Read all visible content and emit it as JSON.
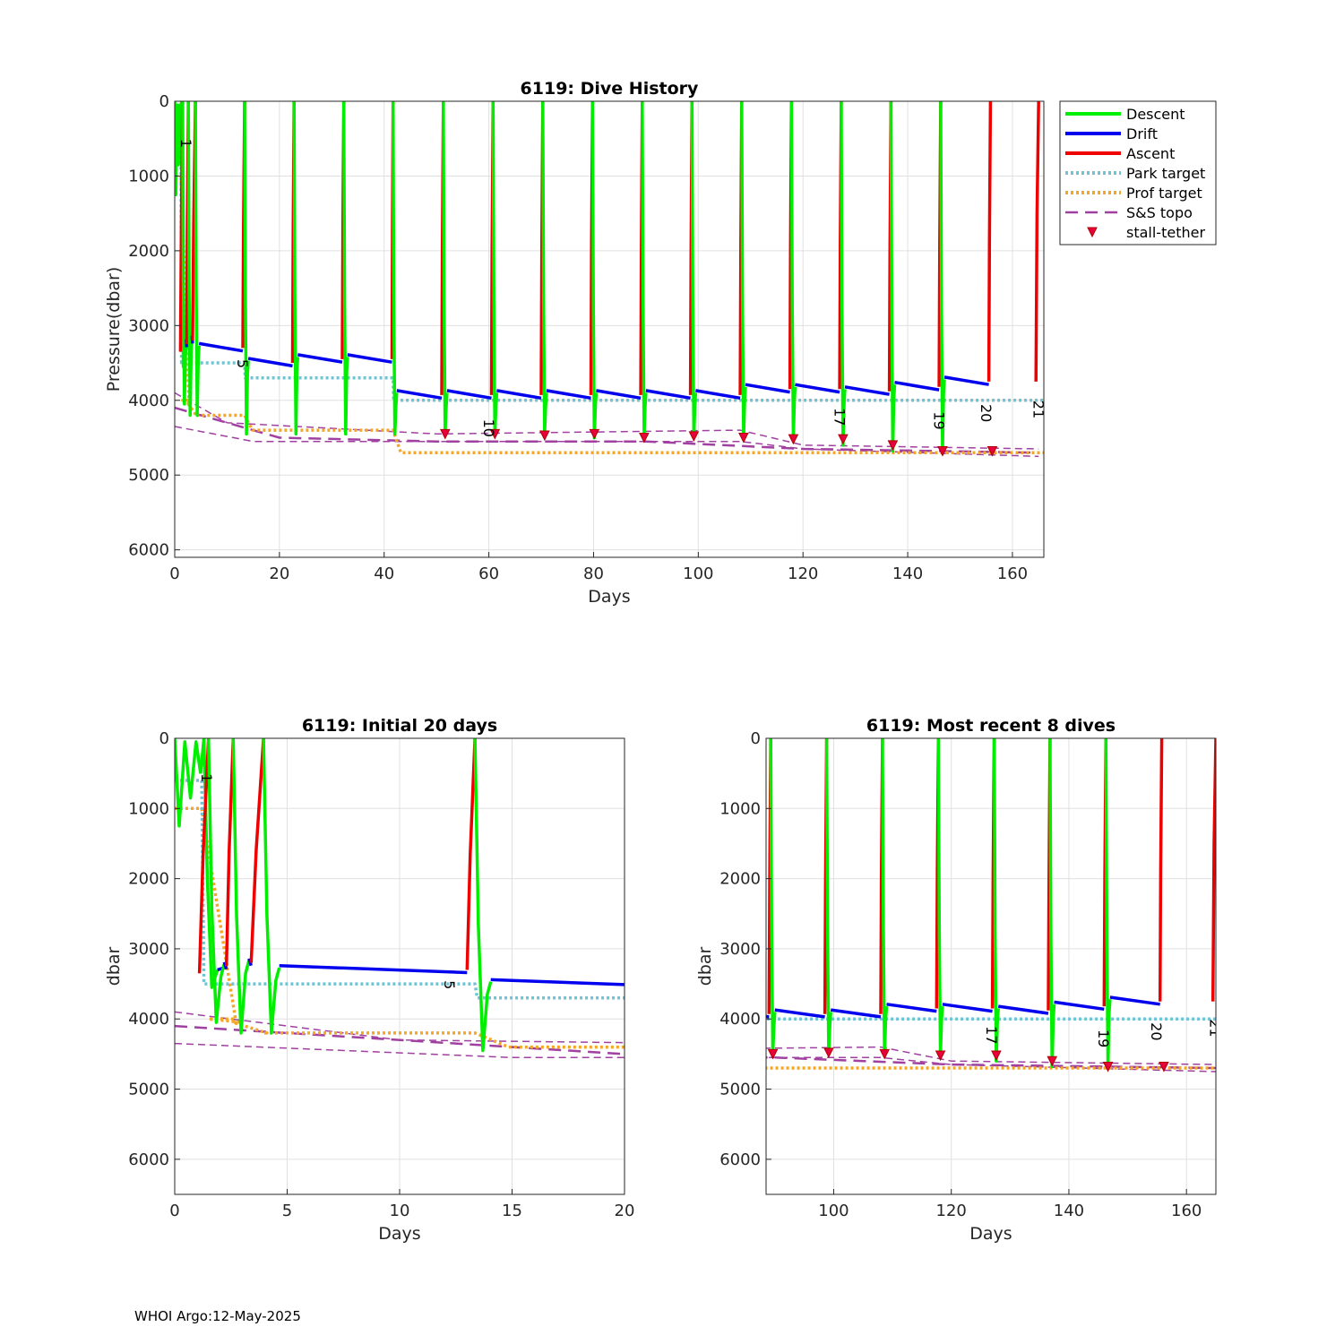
{
  "footer": "WHOI Argo:12-May-2025",
  "colors": {
    "descent": "#00ee00",
    "drift": "#0000ee",
    "ascent": "#ee0000",
    "park": "#6fc3d3",
    "prof": "#f5a623",
    "topo": "#a040a0",
    "stall": "#e8003a",
    "grid": "#e0e0e0"
  },
  "legend": [
    {
      "label": "Descent",
      "style": "descent"
    },
    {
      "label": "Drift",
      "style": "drift"
    },
    {
      "label": "Ascent",
      "style": "ascent"
    },
    {
      "label": "Park target",
      "style": "park"
    },
    {
      "label": "Prof target",
      "style": "prof"
    },
    {
      "label": "S&S topo",
      "style": "topo"
    },
    {
      "label": "stall-tether",
      "style": "stall"
    }
  ],
  "series": {
    "cycles": [
      {
        "asc": 1.1,
        "top": 1.5,
        "bot": 3.55,
        "end": 3.35,
        "pk": 3.5,
        "pt": 4.0
      },
      {
        "asc": 2.3,
        "top": 2.6,
        "bot": 4.05,
        "end": 3.25,
        "pk": 3.5,
        "pt": 4.05
      },
      {
        "asc": 3.4,
        "top": 3.95,
        "bot": 4.2,
        "end": 3.2,
        "pk": 3.5,
        "pt": 4.2
      },
      {
        "asc": 13.0,
        "top": 13.35,
        "bot": 4.2,
        "end": 3.3,
        "pk": 3.5,
        "pt": 4.2
      },
      {
        "asc": 22.5,
        "top": 22.8,
        "bot": 4.45,
        "end": 3.5,
        "pk": 3.7,
        "pt": 4.4
      },
      {
        "asc": 32.0,
        "top": 32.3,
        "bot": 4.45,
        "end": 3.45,
        "pk": 3.7,
        "pt": 4.4
      },
      {
        "asc": 41.5,
        "top": 41.7,
        "bot": 4.45,
        "end": 3.45,
        "pk": 3.7,
        "pt": 4.4
      },
      {
        "asc": 51.0,
        "top": 51.3,
        "bot": 4.45,
        "end": 3.93,
        "pk": 4.0,
        "pt": 4.7,
        "stall": 4.45
      },
      {
        "asc": 60.5,
        "top": 60.8,
        "bot": 4.45,
        "end": 3.93,
        "pk": 4.0,
        "pt": 4.7,
        "stall": 4.45
      },
      {
        "asc": 70.0,
        "top": 70.3,
        "bot": 4.47,
        "end": 3.93,
        "pk": 4.0,
        "pt": 4.7,
        "stall": 4.47
      },
      {
        "asc": 79.5,
        "top": 79.8,
        "bot": 4.45,
        "end": 3.93,
        "pk": 4.0,
        "pt": 4.7,
        "stall": 4.45
      },
      {
        "asc": 89.0,
        "top": 89.3,
        "bot": 4.5,
        "end": 3.93,
        "pk": 4.0,
        "pt": 4.7,
        "stall": 4.5
      },
      {
        "asc": 98.5,
        "top": 98.8,
        "bot": 4.48,
        "end": 3.93,
        "pk": 4.0,
        "pt": 4.7,
        "stall": 4.48
      },
      {
        "asc": 108.0,
        "top": 108.3,
        "bot": 4.5,
        "end": 3.93,
        "pk": 4.0,
        "pt": 4.7,
        "stall": 4.5
      },
      {
        "asc": 117.5,
        "top": 117.8,
        "bot": 4.52,
        "end": 3.85,
        "pk": 4.0,
        "pt": 4.7,
        "stall": 4.52
      },
      {
        "asc": 127.0,
        "top": 127.3,
        "bot": 4.52,
        "end": 3.85,
        "pk": 4.0,
        "pt": 4.7,
        "stall": 4.52
      },
      {
        "asc": 136.5,
        "top": 136.8,
        "bot": 4.6,
        "end": 3.88,
        "pk": 4.0,
        "pt": 4.7,
        "stall": 4.6
      },
      {
        "asc": 146.0,
        "top": 146.3,
        "bot": 4.68,
        "end": 3.82,
        "pk": 4.0,
        "pt": 4.7,
        "stall": 4.68
      },
      {
        "asc": 155.5,
        "top": 155.8,
        "bot": 4.68,
        "end": 3.75,
        "pk": 4.0,
        "pt": 4.7,
        "stall": 4.68
      },
      {
        "asc": 164.5,
        "top": 165.0,
        "bot": null,
        "end": null,
        "pk": 4.0,
        "pt": 4.7
      }
    ],
    "first_descent": {
      "top": 0.0,
      "dips": [
        [
          0.2,
          1.25
        ],
        [
          0.45,
          0.05
        ],
        [
          0.7,
          0.85
        ],
        [
          0.95,
          0.05
        ],
        [
          1.15,
          0.5
        ]
      ]
    },
    "topo": [
      {
        "d": [
          0,
          4.1
        ],
        "e": [
          20,
          4.5
        ],
        "f": [
          50,
          4.55
        ],
        "g": [
          90,
          4.55
        ],
        "h": [
          120,
          4.65
        ],
        "i": [
          165,
          4.7
        ]
      },
      {
        "d": [
          0,
          3.9
        ],
        "e": [
          10,
          4.3
        ],
        "f": [
          50,
          4.45
        ],
        "g": [
          108,
          4.4
        ],
        "h": [
          120,
          4.6
        ],
        "i": [
          165,
          4.65
        ]
      },
      {
        "d": [
          0,
          4.35
        ],
        "e": [
          15,
          4.55
        ],
        "f": [
          50,
          4.55
        ],
        "g": [
          108,
          4.55
        ],
        "h": [
          120,
          4.65
        ],
        "i": [
          165,
          4.75
        ]
      }
    ],
    "cycle_labels": [
      {
        "day": 1.2,
        "p": 0.5,
        "label": "1"
      },
      {
        "day": 12.0,
        "p": 3.45,
        "label": "5"
      },
      {
        "day": 59.0,
        "p": 4.25,
        "label": "10"
      },
      {
        "day": 126.0,
        "p": 4.1,
        "label": "17"
      },
      {
        "day": 145.0,
        "p": 4.15,
        "label": "19"
      },
      {
        "day": 154.0,
        "p": 4.05,
        "label": "20"
      },
      {
        "day": 164.0,
        "p": 4.0,
        "label": "21"
      }
    ]
  },
  "chart_data": [
    {
      "type": "line",
      "title": "6119: Dive History",
      "xlabel": "Days",
      "ylabel": "Pressure(dbar)",
      "xlim": [
        0,
        166
      ],
      "ylim": [
        6100,
        0
      ],
      "xticks": [
        0,
        20,
        40,
        60,
        80,
        100,
        120,
        140,
        160
      ],
      "yticks": [
        0,
        1000,
        2000,
        3000,
        4000,
        5000,
        6000
      ],
      "legend": [
        "Descent",
        "Drift",
        "Ascent",
        "Park target",
        "Prof target",
        "S&S topo",
        "stall-tether"
      ]
    },
    {
      "type": "line",
      "title": "6119: Initial 20 days",
      "xlabel": "Days",
      "ylabel": "dbar",
      "xlim": [
        0,
        20
      ],
      "ylim": [
        6500,
        0
      ],
      "xticks": [
        0,
        5,
        10,
        15,
        20
      ],
      "yticks": [
        0,
        1000,
        2000,
        3000,
        4000,
        5000,
        6000
      ]
    },
    {
      "type": "line",
      "title": "6119: Most recent 8 dives",
      "xlabel": "Days",
      "ylabel": "dbar",
      "xlim": [
        88.5,
        165
      ],
      "ylim": [
        6500,
        0
      ],
      "xticks": [
        100,
        120,
        140,
        160
      ],
      "yticks": [
        0,
        1000,
        2000,
        3000,
        4000,
        5000,
        6000
      ]
    }
  ]
}
